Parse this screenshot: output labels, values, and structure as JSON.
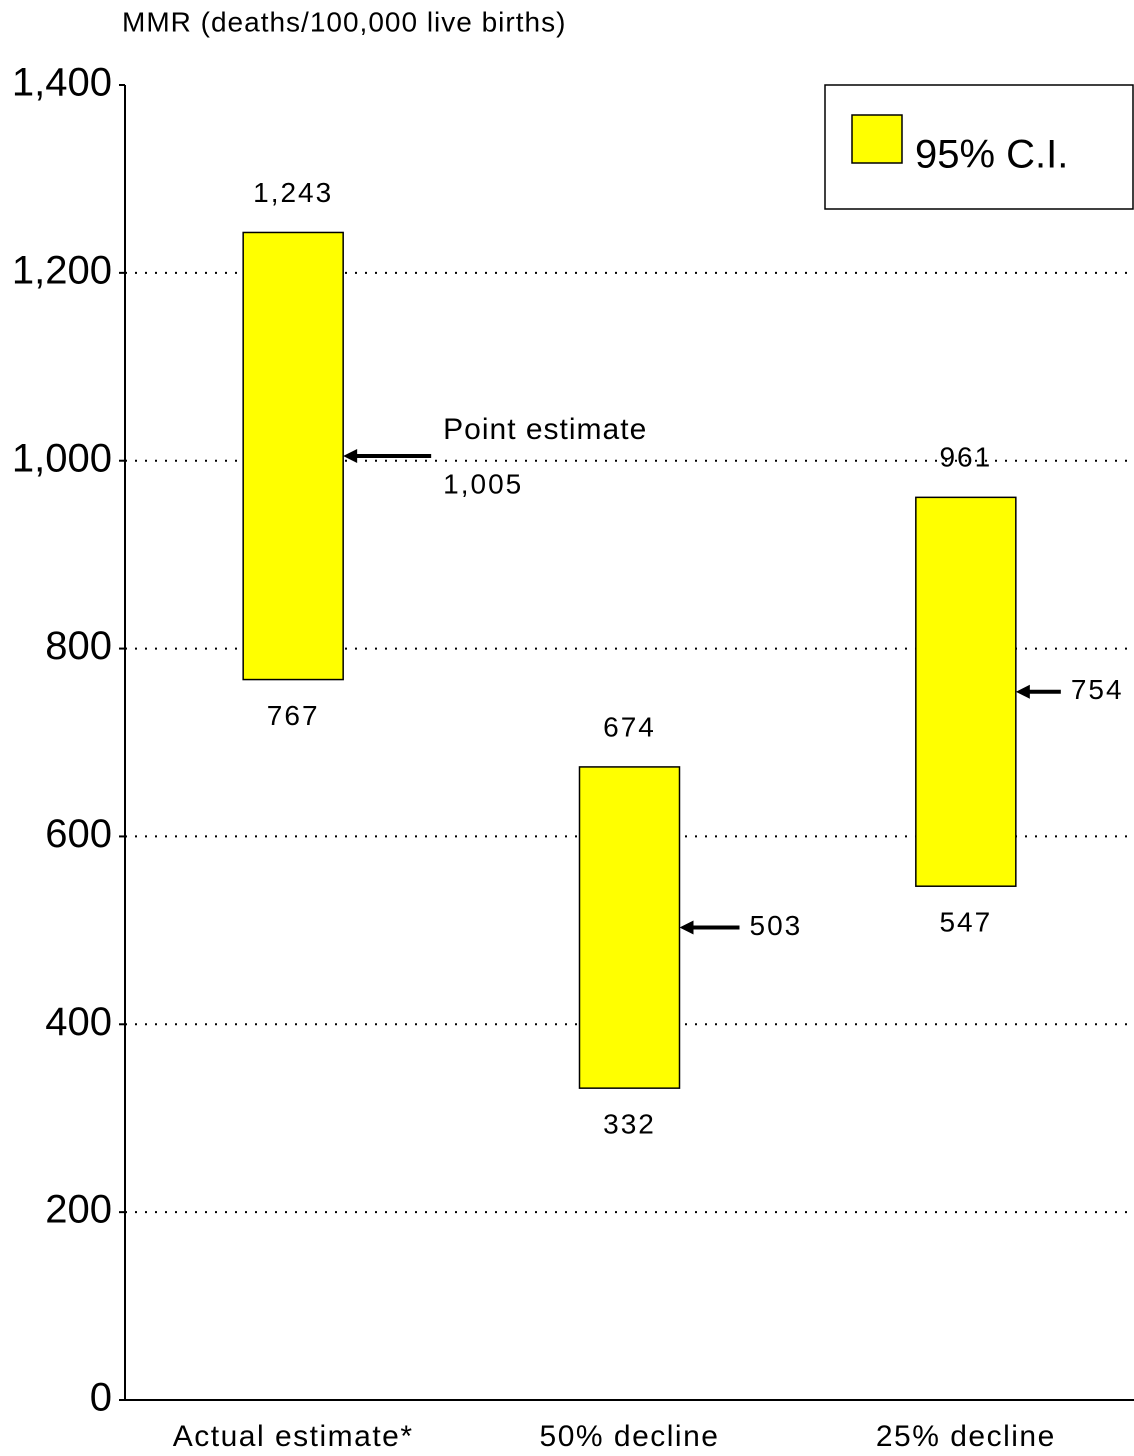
{
  "chart_data": {
    "type": "range",
    "y_axis_label": "MMR (deaths/100,000 live births)",
    "categories": [
      "Actual estimate*",
      "50% decline",
      "25% decline"
    ],
    "series": [
      {
        "name": "95% C.I.",
        "color": "#ffff00",
        "low": [
          767,
          332,
          547
        ],
        "high": [
          1243,
          674,
          961
        ],
        "high_labels": [
          "1,243",
          "674",
          "961"
        ]
      }
    ],
    "point_estimate": {
      "label": "Point estimate",
      "values": [
        1005,
        503,
        754
      ],
      "value_labels": [
        "1,005",
        "503",
        "754"
      ]
    },
    "ylim": [
      0,
      1400
    ],
    "yticks": [
      0,
      200,
      400,
      600,
      800,
      {
        "value": 1000,
        "label": "1,000"
      },
      {
        "value": 1200,
        "label": "1,200"
      },
      {
        "value": 1400,
        "label": "1,400"
      }
    ],
    "grid": true,
    "legend": "top-right"
  }
}
